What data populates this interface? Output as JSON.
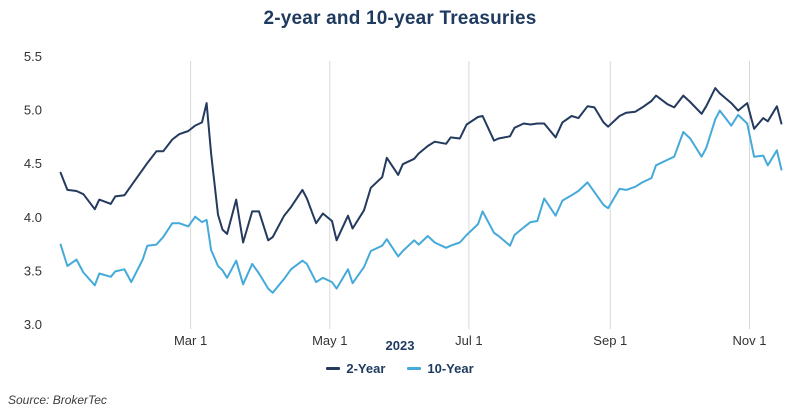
{
  "page": {
    "source_note": "Source: BrokerTec"
  },
  "chart_data": {
    "type": "line",
    "title": "2-year and 10-year Treasuries",
    "x_axis_year": "2023",
    "legend_position": "bottom",
    "grid": "vertical-only",
    "grid_color": "#d8d8d8",
    "ylim": [
      3.0,
      5.5
    ],
    "x_range_days": [
      0,
      320
    ],
    "y_ticks": [
      {
        "value": 3.0,
        "label": "3.0"
      },
      {
        "value": 3.5,
        "label": "3.5"
      },
      {
        "value": 4.0,
        "label": "4.0"
      },
      {
        "value": 4.5,
        "label": "4.5"
      },
      {
        "value": 5.0,
        "label": "5.0"
      },
      {
        "value": 5.5,
        "label": "5.5"
      }
    ],
    "x_ticks": [
      {
        "day": 59,
        "label": "Mar 1"
      },
      {
        "day": 120,
        "label": "May 1"
      },
      {
        "day": 181,
        "label": "Jul 1"
      },
      {
        "day": 243,
        "label": "Sep 1"
      },
      {
        "day": 304,
        "label": "Nov 1"
      }
    ],
    "days": [
      2,
      5,
      9,
      12,
      17,
      19,
      24,
      26,
      30,
      33,
      38,
      40,
      44,
      47,
      51,
      54,
      58,
      61,
      64,
      66,
      68,
      71,
      73,
      75,
      79,
      82,
      86,
      89,
      93,
      95,
      100,
      103,
      108,
      110,
      114,
      117,
      121,
      123,
      128,
      130,
      135,
      138,
      143,
      145,
      150,
      152,
      157,
      159,
      163,
      166,
      171,
      173,
      177,
      180,
      185,
      187,
      192,
      194,
      199,
      201,
      205,
      208,
      211,
      214,
      219,
      222,
      226,
      229,
      233,
      236,
      240,
      242,
      247,
      250,
      254,
      257,
      261,
      263,
      268,
      271,
      275,
      278,
      283,
      285,
      289,
      291,
      296,
      299,
      303,
      306,
      310,
      312,
      316,
      318
    ],
    "series": [
      {
        "name": "2-Year",
        "color": "#243a5e",
        "values": [
          4.42,
          4.26,
          4.25,
          4.22,
          4.08,
          4.17,
          4.13,
          4.2,
          4.21,
          4.3,
          4.45,
          4.51,
          4.62,
          4.62,
          4.73,
          4.78,
          4.81,
          4.86,
          4.89,
          5.07,
          4.6,
          4.03,
          3.89,
          3.85,
          4.17,
          3.77,
          4.06,
          4.06,
          3.79,
          3.82,
          4.02,
          4.1,
          4.26,
          4.18,
          3.95,
          4.04,
          3.97,
          3.79,
          4.02,
          3.9,
          4.07,
          4.28,
          4.38,
          4.56,
          4.4,
          4.5,
          4.55,
          4.6,
          4.67,
          4.71,
          4.69,
          4.75,
          4.74,
          4.87,
          4.94,
          4.95,
          4.72,
          4.74,
          4.76,
          4.84,
          4.88,
          4.87,
          4.88,
          4.88,
          4.75,
          4.89,
          4.95,
          4.93,
          5.04,
          5.03,
          4.89,
          4.85,
          4.95,
          4.98,
          4.99,
          5.03,
          5.09,
          5.14,
          5.06,
          5.03,
          5.14,
          5.08,
          4.97,
          5.04,
          5.21,
          5.16,
          5.07,
          5.0,
          5.07,
          4.83,
          4.93,
          4.9,
          5.04,
          4.88
        ]
      },
      {
        "name": "10-Year",
        "color": "#45aad9",
        "values": [
          3.75,
          3.55,
          3.61,
          3.49,
          3.37,
          3.48,
          3.45,
          3.5,
          3.52,
          3.4,
          3.61,
          3.74,
          3.75,
          3.82,
          3.95,
          3.95,
          3.92,
          4.01,
          3.96,
          3.98,
          3.7,
          3.55,
          3.51,
          3.44,
          3.6,
          3.38,
          3.57,
          3.48,
          3.34,
          3.3,
          3.43,
          3.52,
          3.6,
          3.57,
          3.4,
          3.44,
          3.4,
          3.34,
          3.52,
          3.39,
          3.54,
          3.69,
          3.74,
          3.8,
          3.64,
          3.69,
          3.79,
          3.75,
          3.83,
          3.77,
          3.72,
          3.74,
          3.77,
          3.84,
          3.94,
          4.06,
          3.86,
          3.83,
          3.74,
          3.84,
          3.91,
          3.96,
          3.97,
          4.18,
          4.02,
          4.16,
          4.21,
          4.25,
          4.33,
          4.24,
          4.12,
          4.09,
          4.27,
          4.26,
          4.29,
          4.33,
          4.37,
          4.49,
          4.54,
          4.57,
          4.8,
          4.74,
          4.57,
          4.65,
          4.92,
          5.0,
          4.86,
          4.96,
          4.88,
          4.57,
          4.58,
          4.49,
          4.63,
          4.45
        ]
      }
    ]
  }
}
